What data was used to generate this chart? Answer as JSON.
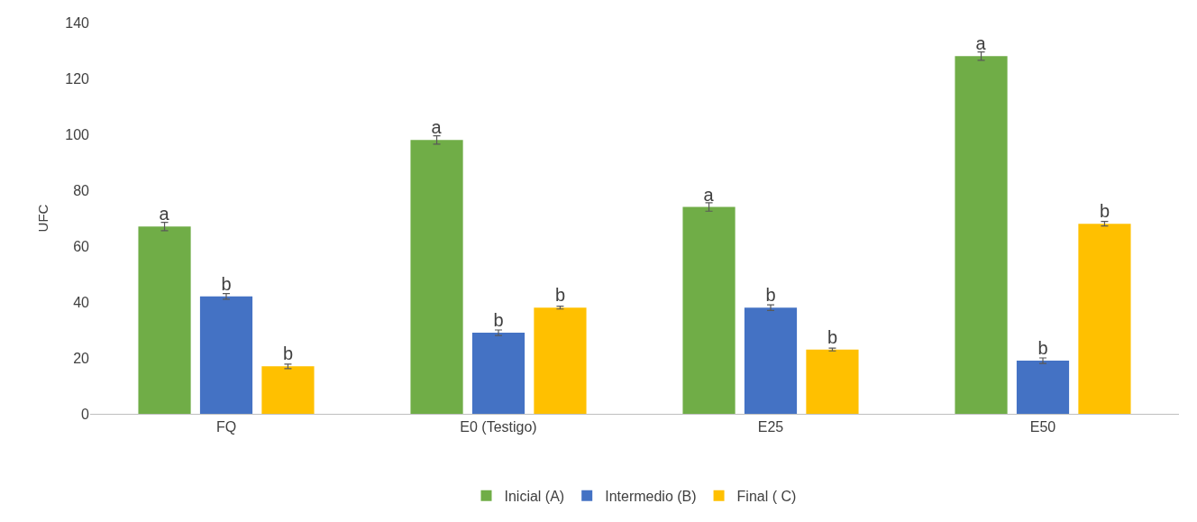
{
  "chart_data": {
    "type": "bar",
    "ylabel": "UFC",
    "categories": [
      "FQ",
      "E0 (Testigo)",
      "E25",
      "E50"
    ],
    "series": [
      {
        "name": "Inicial (A)",
        "color": "#70ad47",
        "values": [
          67,
          98,
          74,
          128
        ],
        "errors": [
          1.5,
          1.5,
          1.5,
          1.5
        ],
        "value_labels": [
          "a",
          "a",
          "a",
          "a"
        ]
      },
      {
        "name": "Intermedio (B)",
        "color": "#4472c4",
        "values": [
          42,
          29,
          38,
          19
        ],
        "errors": [
          1,
          1,
          1,
          1
        ],
        "value_labels": [
          "b",
          "b",
          "b",
          "b"
        ]
      },
      {
        "name": "Final ( C)",
        "color": "#ffc000",
        "values": [
          17,
          38,
          23,
          68
        ],
        "errors": [
          0.8,
          0.5,
          0.5,
          0.8
        ],
        "value_labels": [
          "b",
          "b",
          "b",
          "b"
        ]
      }
    ],
    "ylim": [
      0,
      140
    ],
    "yticks": [
      0,
      20,
      40,
      60,
      80,
      100,
      120,
      140
    ],
    "grid": false,
    "legend": "bottom"
  }
}
